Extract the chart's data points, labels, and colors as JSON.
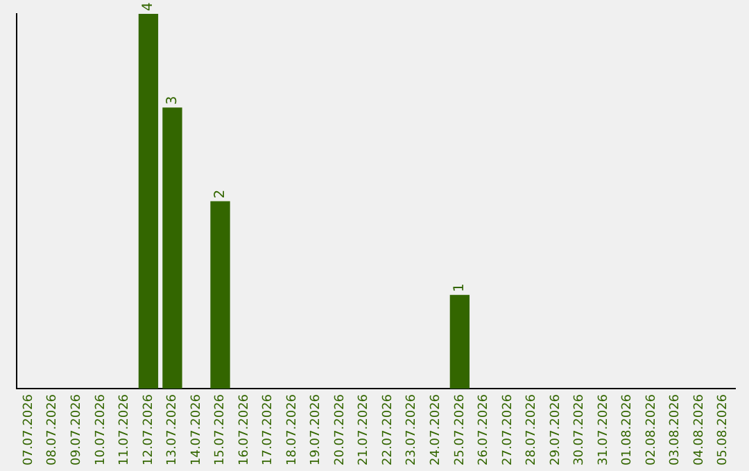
{
  "chart_data": {
    "type": "bar",
    "categories": [
      "07.07.2026",
      "08.07.2026",
      "09.07.2026",
      "10.07.2026",
      "11.07.2026",
      "12.07.2026",
      "13.07.2026",
      "14.07.2026",
      "15.07.2026",
      "16.07.2026",
      "17.07.2026",
      "18.07.2026",
      "19.07.2026",
      "20.07.2026",
      "21.07.2026",
      "22.07.2026",
      "23.07.2026",
      "24.07.2026",
      "25.07.2026",
      "26.07.2026",
      "27.07.2026",
      "28.07.2026",
      "29.07.2026",
      "30.07.2026",
      "31.07.2026",
      "01.08.2026",
      "02.08.2026",
      "03.08.2026",
      "04.08.2026",
      "05.08.2026"
    ],
    "values": [
      0,
      0,
      0,
      0,
      0,
      4,
      3,
      0,
      2,
      0,
      0,
      0,
      0,
      0,
      0,
      0,
      0,
      0,
      1,
      0,
      0,
      0,
      0,
      0,
      0,
      0,
      0,
      0,
      0,
      0
    ],
    "value_labels": [
      null,
      null,
      null,
      null,
      null,
      "4",
      "3",
      null,
      "2",
      null,
      null,
      null,
      null,
      null,
      null,
      null,
      null,
      null,
      "1",
      null,
      null,
      null,
      null,
      null,
      null,
      null,
      null,
      null,
      null,
      null
    ],
    "color": "#336600",
    "ylim": [
      0,
      4
    ],
    "grid": false,
    "legend": false,
    "tick_labels": "x"
  }
}
